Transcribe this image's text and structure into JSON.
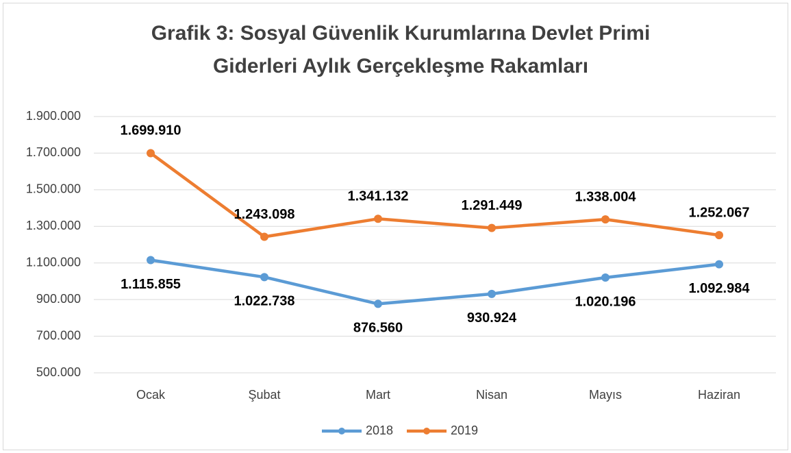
{
  "chart_data": {
    "type": "line",
    "title": [
      "Grafik 3: Sosyal Güvenlik Kurumlarına Devlet Primi",
      "Giderleri Aylık Gerçekleşme Rakamları"
    ],
    "categories": [
      "Ocak",
      "Şubat",
      "Mart",
      "Nisan",
      "Mayıs",
      "Haziran"
    ],
    "series": [
      {
        "name": "2018",
        "color": "#5b9bd5",
        "values": [
          1115855,
          1022738,
          876560,
          930924,
          1020196,
          1092984
        ],
        "value_labels": [
          "1.115.855",
          "1.022.738",
          "876.560",
          "930.924",
          "1.020.196",
          "1.092.984"
        ]
      },
      {
        "name": "2019",
        "color": "#ed7d31",
        "values": [
          1699910,
          1243098,
          1341132,
          1291449,
          1338004,
          1252067
        ],
        "value_labels": [
          "1.699.910",
          "1.243.098",
          "1.341.132",
          "1.291.449",
          "1.338.004",
          "1.252.067"
        ]
      }
    ],
    "ylim": [
      500000,
      1900000
    ],
    "yticks": [
      {
        "value": 500000,
        "label": "500.000"
      },
      {
        "value": 700000,
        "label": "700.000"
      },
      {
        "value": 900000,
        "label": "900.000"
      },
      {
        "value": 1100000,
        "label": "1.100.000"
      },
      {
        "value": 1300000,
        "label": "1.300.000"
      },
      {
        "value": 1500000,
        "label": "1.500.000"
      },
      {
        "value": 1700000,
        "label": "1.700.000"
      },
      {
        "value": 1900000,
        "label": "1.900.000"
      }
    ],
    "grid": true,
    "legend": "bottom"
  }
}
